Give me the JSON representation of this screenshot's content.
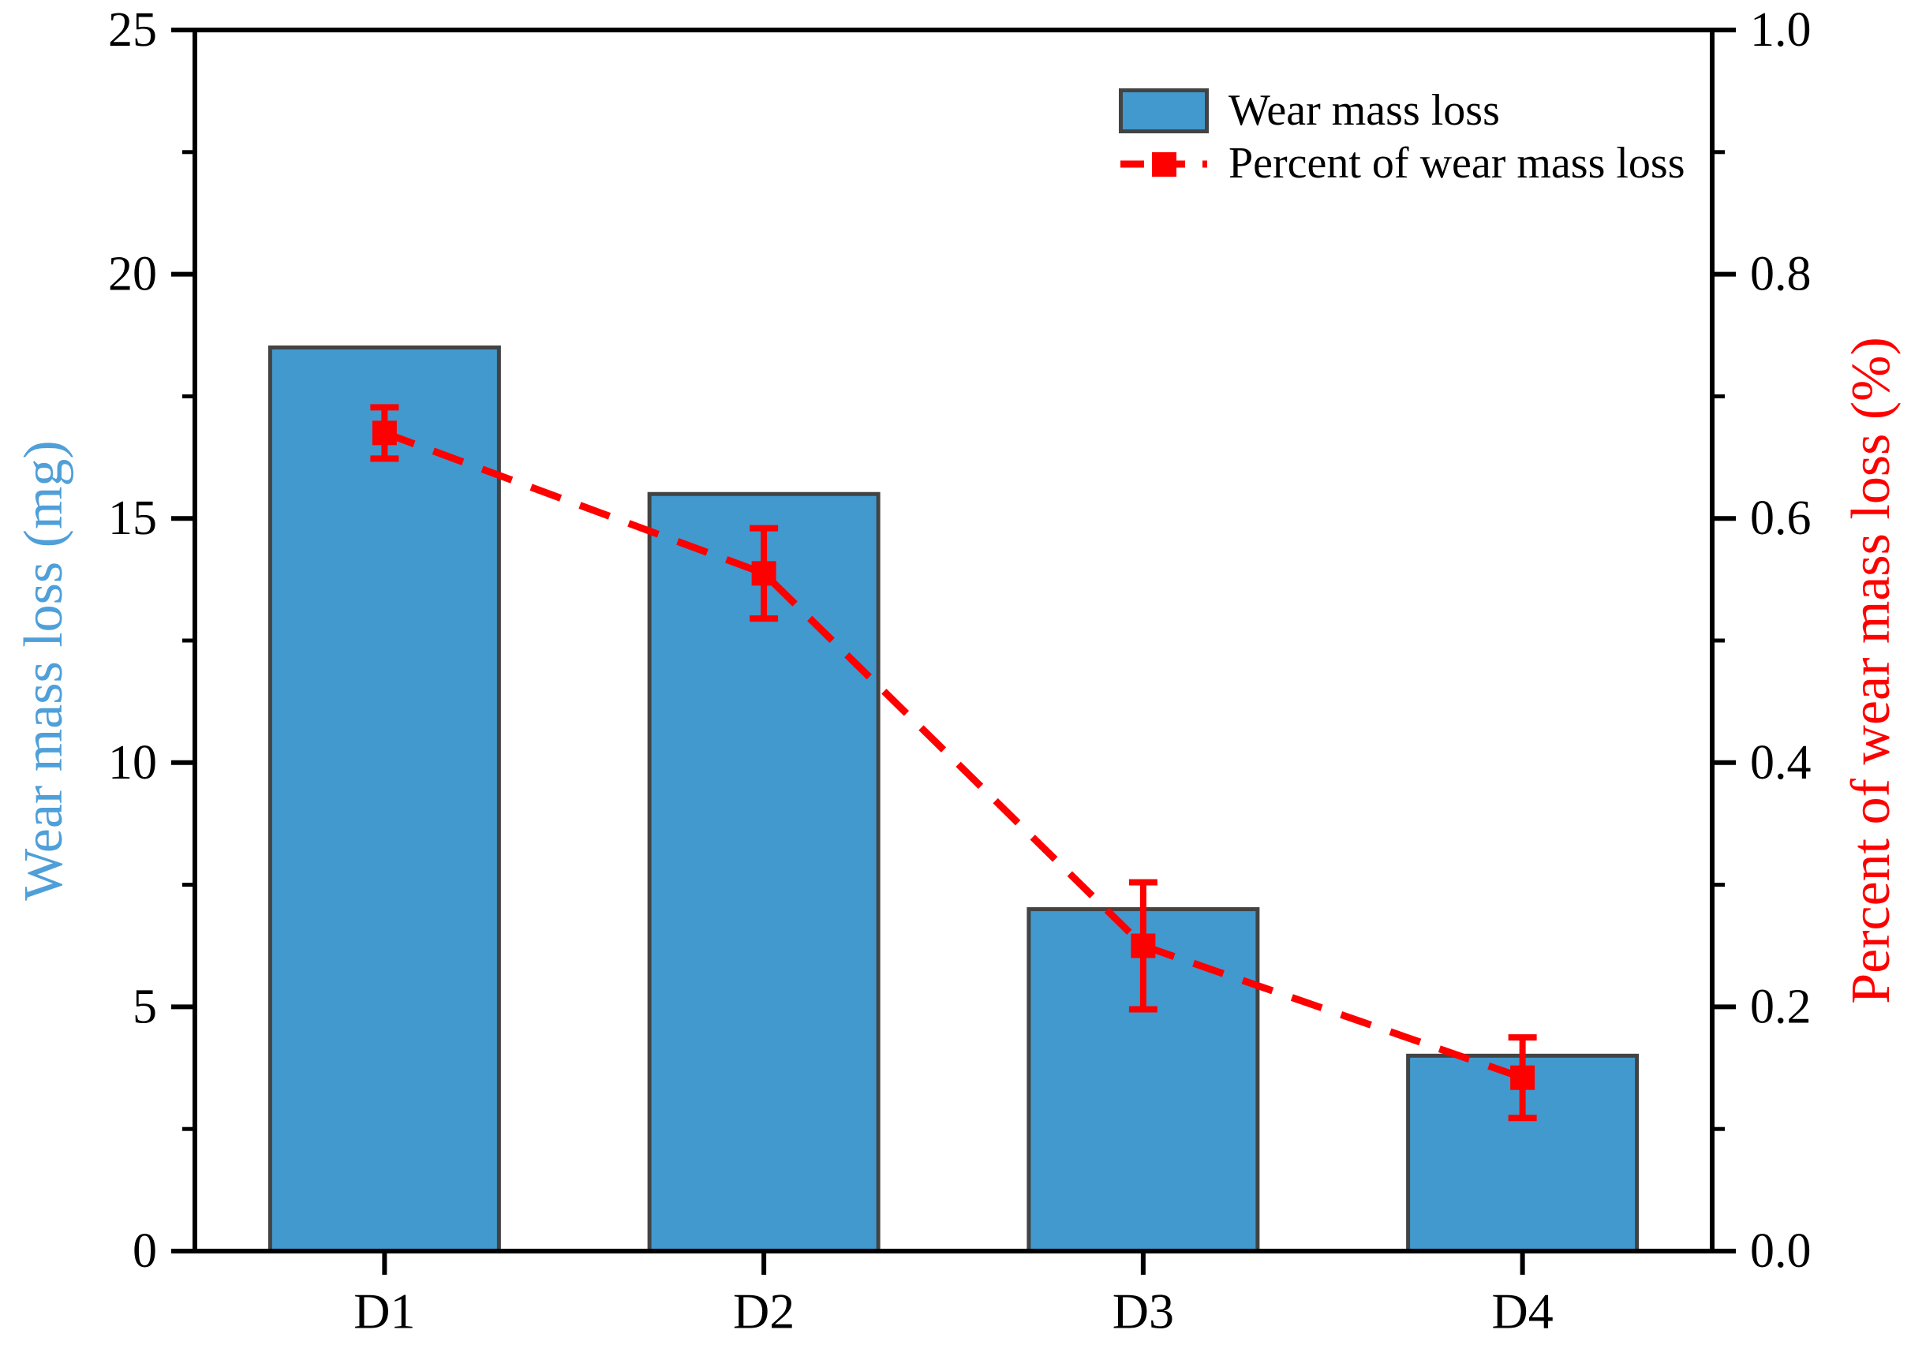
{
  "colors": {
    "bar_fill": "#4299CE",
    "bar_edge": "#434343",
    "line": "#FF0000",
    "axis": "#000000",
    "left_label": "#4F9FD9",
    "right_label": "#FF0000"
  },
  "legend": {
    "items": [
      {
        "label": "Wear mass loss",
        "swatch": "bar-swatch"
      },
      {
        "label": "Percent of wear mass loss",
        "swatch": "dashed-line-square-marker"
      }
    ]
  },
  "chart_data": {
    "type": "bar",
    "subtype": "dual-axis bar + dashed line with error bars",
    "categories": [
      "D1",
      "D2",
      "D3",
      "D4"
    ],
    "series": [
      {
        "name": "Wear mass loss",
        "type": "bar",
        "axis": "left",
        "values": [
          18.5,
          15.5,
          7.0,
          4.0
        ]
      },
      {
        "name": "Percent of wear mass loss",
        "type": "line",
        "axis": "right",
        "line_style": "dashed",
        "marker": "square",
        "values": [
          0.67,
          0.555,
          0.25,
          0.142
        ],
        "errors": [
          0.021,
          0.037,
          0.052,
          0.033
        ]
      }
    ],
    "left_axis": {
      "label": "Wear mass loss (mg)",
      "min": 0,
      "max": 25,
      "tick_values": [
        0,
        5,
        10,
        15,
        20,
        25
      ],
      "tick_labels": [
        "0",
        "5",
        "10",
        "15",
        "20",
        "25"
      ],
      "minor_tick_step": 2.5
    },
    "right_axis": {
      "label": "Percent of wear mass loss (%)",
      "min": 0,
      "max": 1.0,
      "tick_values": [
        0,
        0.2,
        0.4,
        0.6,
        0.8,
        1.0
      ],
      "tick_labels": [
        "0.0",
        "0.2",
        "0.4",
        "0.6",
        "0.8",
        "1.0"
      ],
      "minor_tick_step": 0.1
    },
    "grid": "off",
    "legend_position": "upper right inside plot"
  }
}
